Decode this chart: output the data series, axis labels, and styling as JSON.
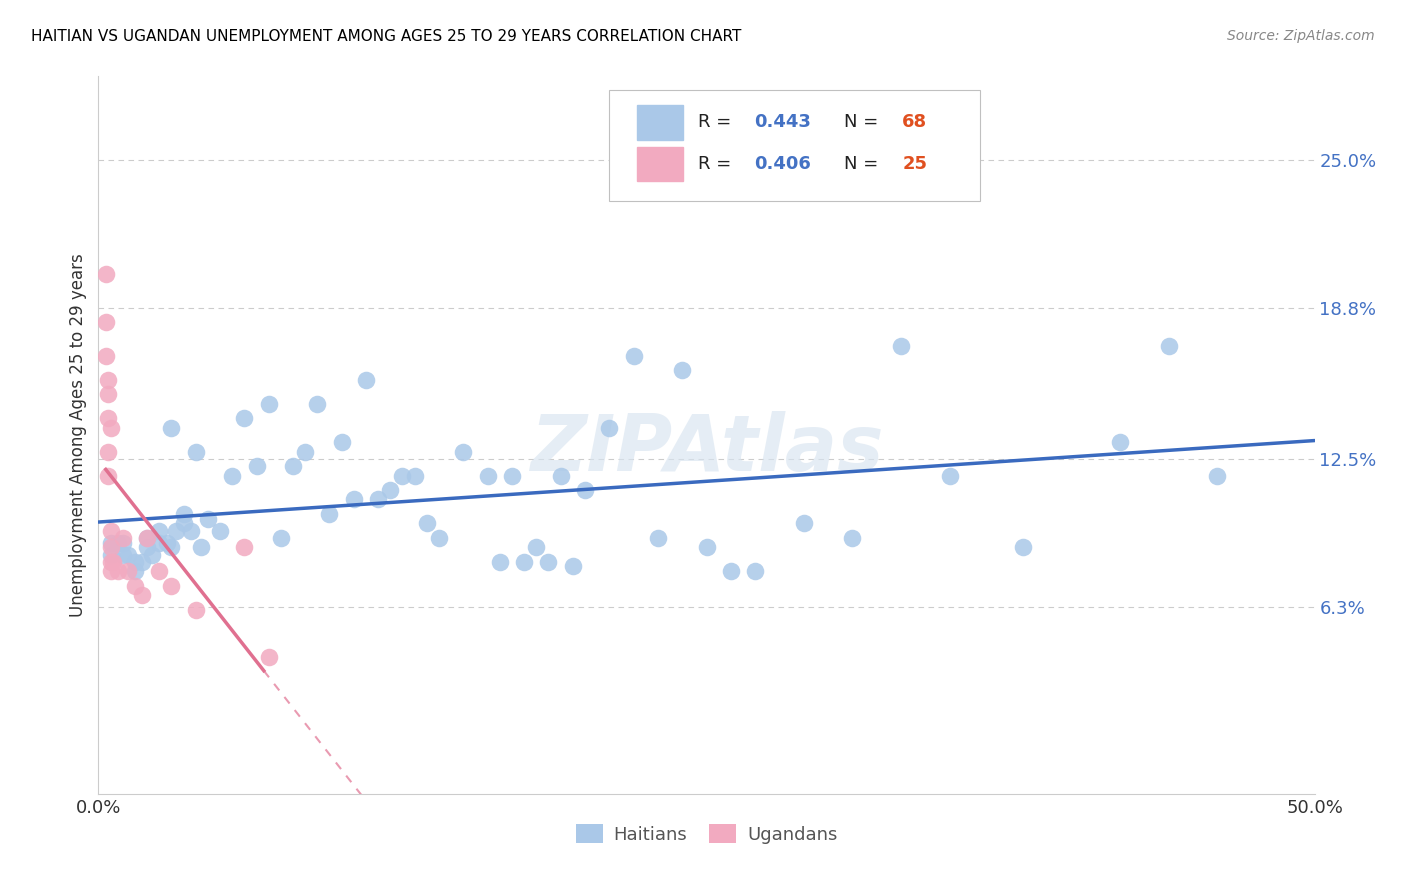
{
  "title": "HAITIAN VS UGANDAN UNEMPLOYMENT AMONG AGES 25 TO 29 YEARS CORRELATION CHART",
  "source": "Source: ZipAtlas.com",
  "ylabel": "Unemployment Among Ages 25 to 29 years",
  "xlim": [
    0.0,
    0.5
  ],
  "ylim": [
    -0.015,
    0.285
  ],
  "xtick_labels": [
    "0.0%",
    "50.0%"
  ],
  "xtick_positions": [
    0.0,
    0.5
  ],
  "ytick_labels": [
    "6.3%",
    "12.5%",
    "18.8%",
    "25.0%"
  ],
  "ytick_positions": [
    0.063,
    0.125,
    0.188,
    0.25
  ],
  "haitian_color": "#aac8e8",
  "ugandan_color": "#f2aac0",
  "haitian_line_color": "#3a6abf",
  "ugandan_line_color": "#e07090",
  "legend_r_color": "#4472c4",
  "legend_n_color": "#e05020",
  "R_haitian": 0.443,
  "N_haitian": 68,
  "R_ugandan": 0.406,
  "N_ugandan": 25,
  "legend_label_haitian": "Haitians",
  "legend_label_ugandan": "Ugandans",
  "background_color": "#ffffff",
  "grid_color": "#cccccc",
  "watermark_text": "ZIPAtlas",
  "watermark_color": "#d8e4f0",
  "haitians_x": [
    0.005,
    0.005,
    0.008,
    0.01,
    0.01,
    0.012,
    0.015,
    0.015,
    0.018,
    0.02,
    0.02,
    0.022,
    0.025,
    0.025,
    0.028,
    0.03,
    0.03,
    0.032,
    0.035,
    0.035,
    0.038,
    0.04,
    0.042,
    0.045,
    0.05,
    0.055,
    0.06,
    0.065,
    0.07,
    0.075,
    0.08,
    0.085,
    0.09,
    0.095,
    0.1,
    0.105,
    0.11,
    0.115,
    0.12,
    0.125,
    0.13,
    0.135,
    0.14,
    0.15,
    0.16,
    0.165,
    0.17,
    0.175,
    0.18,
    0.185,
    0.19,
    0.195,
    0.2,
    0.21,
    0.22,
    0.23,
    0.24,
    0.25,
    0.26,
    0.27,
    0.29,
    0.31,
    0.33,
    0.35,
    0.38,
    0.42,
    0.44,
    0.46
  ],
  "haitians_y": [
    0.09,
    0.085,
    0.09,
    0.09,
    0.085,
    0.085,
    0.082,
    0.078,
    0.082,
    0.092,
    0.088,
    0.085,
    0.095,
    0.09,
    0.09,
    0.138,
    0.088,
    0.095,
    0.098,
    0.102,
    0.095,
    0.128,
    0.088,
    0.1,
    0.095,
    0.118,
    0.142,
    0.122,
    0.148,
    0.092,
    0.122,
    0.128,
    0.148,
    0.102,
    0.132,
    0.108,
    0.158,
    0.108,
    0.112,
    0.118,
    0.118,
    0.098,
    0.092,
    0.128,
    0.118,
    0.082,
    0.118,
    0.082,
    0.088,
    0.082,
    0.118,
    0.08,
    0.112,
    0.138,
    0.168,
    0.092,
    0.162,
    0.088,
    0.078,
    0.078,
    0.098,
    0.092,
    0.172,
    0.118,
    0.088,
    0.132,
    0.172,
    0.118
  ],
  "ugandans_x": [
    0.003,
    0.003,
    0.003,
    0.004,
    0.004,
    0.004,
    0.004,
    0.004,
    0.005,
    0.005,
    0.005,
    0.005,
    0.005,
    0.006,
    0.008,
    0.01,
    0.012,
    0.015,
    0.018,
    0.02,
    0.025,
    0.03,
    0.04,
    0.06,
    0.07
  ],
  "ugandans_y": [
    0.202,
    0.182,
    0.168,
    0.158,
    0.152,
    0.142,
    0.128,
    0.118,
    0.095,
    0.082,
    0.138,
    0.088,
    0.078,
    0.082,
    0.078,
    0.092,
    0.078,
    0.072,
    0.068,
    0.092,
    0.078,
    0.072,
    0.062,
    0.088,
    0.042
  ]
}
